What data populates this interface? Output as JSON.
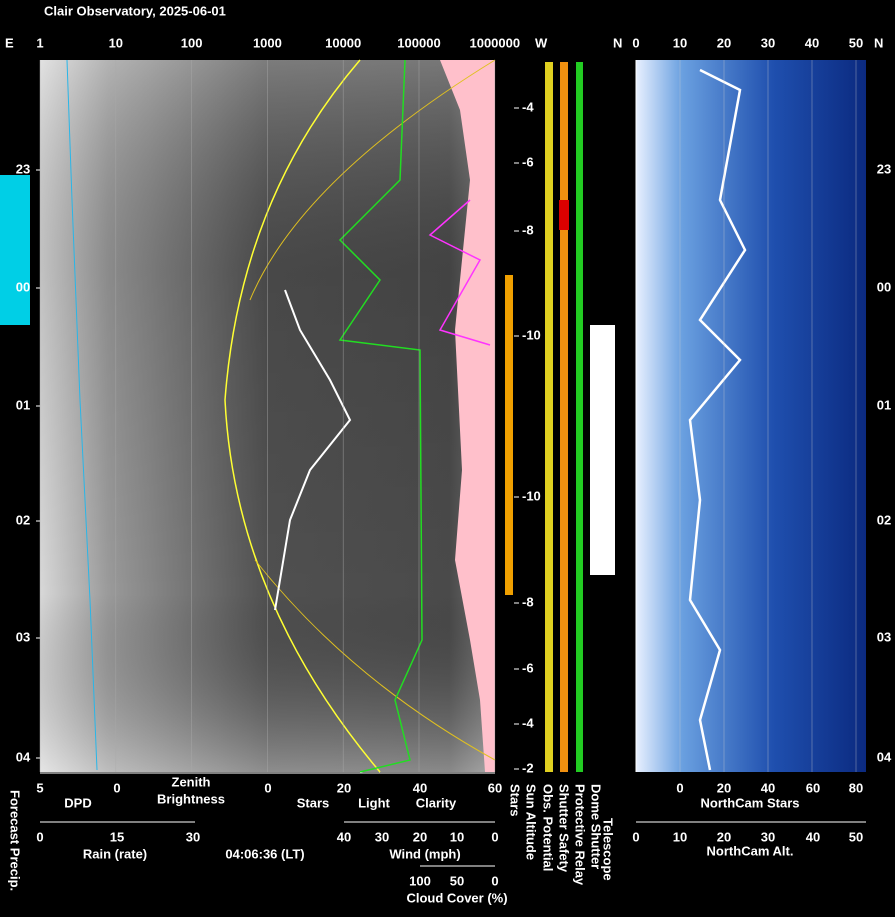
{
  "header": {
    "title": "Clair Observatory, 2025-06-01",
    "east": "E",
    "west": "W",
    "north_left": "N",
    "north_right": "N"
  },
  "brightness_axis": [
    "1",
    "10",
    "100",
    "1000",
    "10000",
    "100000",
    "1000000"
  ],
  "northcam_top_axis": [
    "0",
    "10",
    "20",
    "30",
    "40",
    "50"
  ],
  "time_labels": [
    "23",
    "00",
    "01",
    "02",
    "03",
    "04"
  ],
  "sun_altitude_labels": [
    "-4",
    "-6",
    "-8",
    "-10",
    "-10",
    "-8",
    "-6",
    "-4",
    "-2"
  ],
  "bottom": {
    "dpd_axis": [
      "5",
      "0"
    ],
    "dpd": "DPD",
    "zenith": "Zenith",
    "brightness": "Brightness",
    "zenith_zero": "0",
    "stars_axis": [
      "20",
      "40",
      "60"
    ],
    "stars": "Stars",
    "light": "Light",
    "clarity": "Clarity",
    "rain_axis": [
      "0",
      "15",
      "30"
    ],
    "rain": "Rain (rate)",
    "time": "04:06:36 (LT)",
    "wind_axis": [
      "40",
      "30",
      "20",
      "10",
      "0"
    ],
    "wind": "Wind (mph)",
    "cloud_axis": [
      "100",
      "50",
      "0"
    ],
    "cloud": "Cloud Cover (%)",
    "northcam_stars_axis": [
      "0",
      "20",
      "40",
      "60",
      "80"
    ],
    "northcam_stars": "NorthCam Stars",
    "northcam_alt_axis": [
      "0",
      "10",
      "20",
      "30",
      "40",
      "50"
    ],
    "northcam_alt": "NorthCam Alt."
  },
  "vertical_labels": {
    "forecast": "Forecast Precip.",
    "stars": "Stars",
    "sun_altitude": "Sun Altitude",
    "obs_potential": "Obs. Potential",
    "shutter_safety": "Shutter Safety",
    "protective_relay": "Protective Relay",
    "dome_shutter": "Dome Shutter",
    "telescope": "Telescope"
  }
}
